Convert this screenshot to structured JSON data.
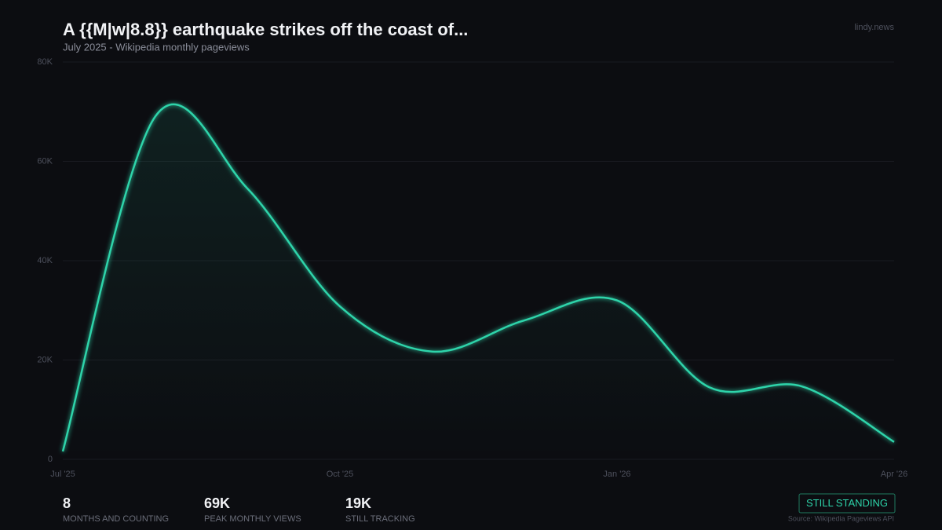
{
  "brand": "lindy.news",
  "chart_data": {
    "type": "line",
    "title": "A {{M|w|8.8}} earthquake strikes off the coast of...",
    "subtitle": "July 2025  -  Wikipedia monthly pageviews",
    "x": [
      "2025-07",
      "2025-08",
      "2025-09",
      "2025-10",
      "2025-11",
      "2025-12",
      "2026-01",
      "2026-02",
      "2026-03",
      "2026-04"
    ],
    "series": [
      {
        "name": "pageviews",
        "color": "#2dd4aa",
        "values": [
          1600,
          69000,
          54500,
          30800,
          21700,
          28000,
          32000,
          14500,
          14700,
          3500
        ]
      }
    ],
    "xticks": [
      {
        "value": "2025-07",
        "label": "Jul '25"
      },
      {
        "value": "2025-10",
        "label": "Oct '25"
      },
      {
        "value": "2026-01",
        "label": "Jan '26"
      },
      {
        "value": "2026-04",
        "label": "Apr '26"
      }
    ],
    "ylim": [
      0,
      80000
    ],
    "yticks": [
      0,
      {
        "value": 20000,
        "label": "20K"
      },
      {
        "value": 40000,
        "label": "40K"
      },
      {
        "value": 60000,
        "label": "60K"
      },
      {
        "value": 80000,
        "label": "80K"
      }
    ],
    "grid": true,
    "smooth": true
  },
  "stats": [
    {
      "value": "8",
      "label": "MONTHS AND COUNTING"
    },
    {
      "value": "69K",
      "label": "PEAK MONTHLY VIEWS"
    },
    {
      "value": "19K",
      "label": "STILL TRACKING"
    }
  ],
  "badge": "STILL STANDING",
  "source": "Source: Wikipedia Pageviews API"
}
